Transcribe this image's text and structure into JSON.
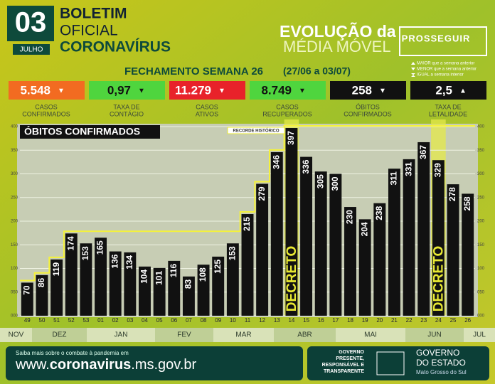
{
  "header": {
    "day": "03",
    "month": "JULHO",
    "title_lines": [
      "BOLETIM",
      "OFICIAL",
      "CORONAVÍRUS"
    ],
    "headline_1": "EVOLUÇÃO da",
    "headline_2": "MÉDIA MÓVEL",
    "brand": "PROSSEGUIR"
  },
  "summary": {
    "title": "FECHAMENTO SEMANA 26",
    "period": "(27/06 a 03/07)",
    "legend": [
      "MAIOR que a semana anterior",
      "MENOR que a semana anterior",
      "IGUAL a semana interior"
    ],
    "stats": [
      {
        "value": "5.548",
        "trend": "▼",
        "label_1": "CASOS",
        "label_2": "CONFIRMADOS",
        "color": "#f26b21",
        "text_color": "#ffffff"
      },
      {
        "value": "0,97",
        "trend": "▼",
        "label_1": "TAXA DE",
        "label_2": "CONTÁGIO",
        "color": "#4fd53e",
        "text_color": "#111111"
      },
      {
        "value": "11.279",
        "trend": "▼",
        "label_1": "CASOS",
        "label_2": "ATIVOS",
        "color": "#e8222a",
        "text_color": "#ffffff"
      },
      {
        "value": "8.749",
        "trend": "▼",
        "label_1": "CASOS",
        "label_2": "RECUPERADOS",
        "color": "#4fd53e",
        "text_color": "#111111"
      },
      {
        "value": "258",
        "trend": "▼",
        "label_1": "ÓBITOS",
        "label_2": "CONFIRMADOS",
        "color": "#111111",
        "text_color": "#ffffff"
      },
      {
        "value": "2,5",
        "trend": "▲",
        "label_1": "TAXA DE",
        "label_2": "LETALIDADE",
        "color": "#111111",
        "text_color": "#ffffff"
      }
    ]
  },
  "chart_data": {
    "type": "bar",
    "title": "ÓBITOS CONFIRMADOS",
    "record_label": "RECORDE HISTÓRICO",
    "categories": [
      "49",
      "50",
      "51",
      "52",
      "53",
      "01",
      "02",
      "03",
      "04",
      "05",
      "06",
      "07",
      "08",
      "09",
      "10",
      "11",
      "12",
      "13",
      "14",
      "15",
      "16",
      "17",
      "18",
      "19",
      "20",
      "21",
      "22",
      "23",
      "24",
      "25",
      "26"
    ],
    "series": [
      {
        "name": "Óbitos",
        "color": "#111111",
        "values": [
          70,
          86,
          119,
          174,
          153,
          165,
          136,
          134,
          104,
          101,
          116,
          83,
          108,
          125,
          153,
          215,
          279,
          346,
          397,
          336,
          305,
          300,
          230,
          204,
          238,
          311,
          331,
          367,
          329,
          278,
          258
        ]
      }
    ],
    "ylim": [
      0,
      400
    ],
    "yticks": [
      {
        "value": 0,
        "label": "000"
      },
      {
        "value": 50,
        "label": "050"
      },
      100,
      150,
      200,
      250,
      300,
      350,
      400
    ],
    "grid": true,
    "annotations": [
      {
        "text": "DECRETO",
        "category": "14"
      },
      {
        "text": "DECRETO",
        "category": "24"
      }
    ],
    "months": [
      "NOV",
      "DEZ",
      "JAN",
      "FEV",
      "MAR",
      "ABR",
      "MAI",
      "JUN",
      "JUL"
    ]
  },
  "footer": {
    "intro": "Saiba mais sobre o combate à pandemia em",
    "url_prefix": "www.",
    "url_main": "coronavirus",
    "url_suffix": ".ms.gov.br",
    "motto": [
      "GOVERNO",
      "PRESENTE,",
      "RESPONSÁVEL E",
      "TRANSPARENTE"
    ],
    "gov_1": "GOVERNO",
    "gov_2": "DO ESTADO",
    "state": "Mato Grosso do Sul"
  }
}
